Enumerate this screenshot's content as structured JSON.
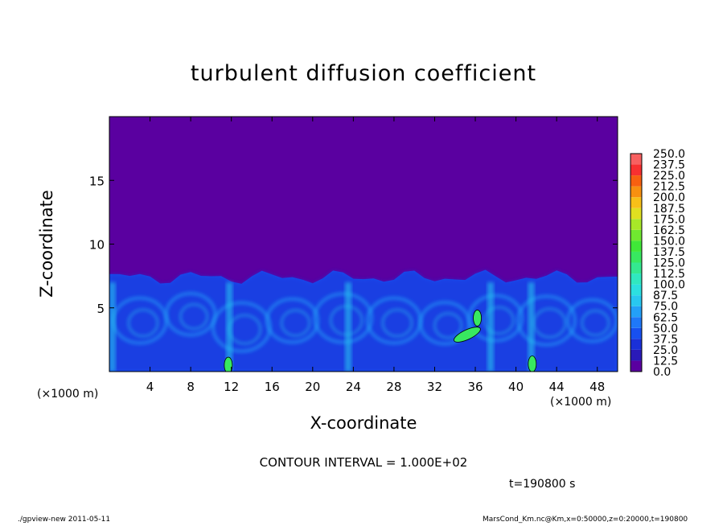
{
  "chart_data": {
    "type": "heatmap",
    "title": "turbulent diffusion coefficient",
    "xlabel": "X-coordinate",
    "ylabel": "Z-coordinate",
    "x_unit": "(×1000 m)",
    "z_unit": "(×1000 m)",
    "xlim": [
      0,
      50
    ],
    "ylim": [
      0,
      20
    ],
    "x_ticks": [
      4,
      8,
      12,
      16,
      20,
      24,
      28,
      32,
      36,
      40,
      44,
      48
    ],
    "y_ticks": [
      5,
      10,
      15
    ],
    "colorbar": {
      "levels": [
        "0.0",
        "12.5",
        "25.0",
        "37.5",
        "50.0",
        "62.5",
        "75.0",
        "87.5",
        "100.0",
        "112.5",
        "125.0",
        "137.5",
        "150.0",
        "162.5",
        "175.0",
        "187.5",
        "200.0",
        "212.5",
        "225.0",
        "237.5",
        "250.0"
      ],
      "colors": [
        "#5a00a0",
        "#2a1ab8",
        "#1a30d8",
        "#1850f0",
        "#1f78f8",
        "#23a0f8",
        "#28c8f0",
        "#2ce0e0",
        "#30e8c0",
        "#34e890",
        "#38e860",
        "#40e838",
        "#70e830",
        "#a8e828",
        "#e0e020",
        "#f8c018",
        "#f89010",
        "#f86010",
        "#f83030",
        "#f86060",
        "#f89090"
      ]
    },
    "contour_interval": "CONTOUR INTERVAL = 1.000E+02",
    "time_label": "t=190800 s",
    "high_regions": [
      {
        "x_center": 35.2,
        "z_center": 2.9,
        "value": "100-150"
      },
      {
        "x_center": 36.2,
        "z_center": 4.2,
        "value": "100-150"
      },
      {
        "x_center": 41.6,
        "z_center": 0.6,
        "value": "100-150"
      },
      {
        "x_center": 11.7,
        "z_center": 0.5,
        "value": "100-150"
      }
    ]
  },
  "footer": {
    "left": "./gpview-new   2011-05-11",
    "right": "MarsCond_Km.nc@Km,x=0:50000,z=0:20000,t=190800"
  }
}
